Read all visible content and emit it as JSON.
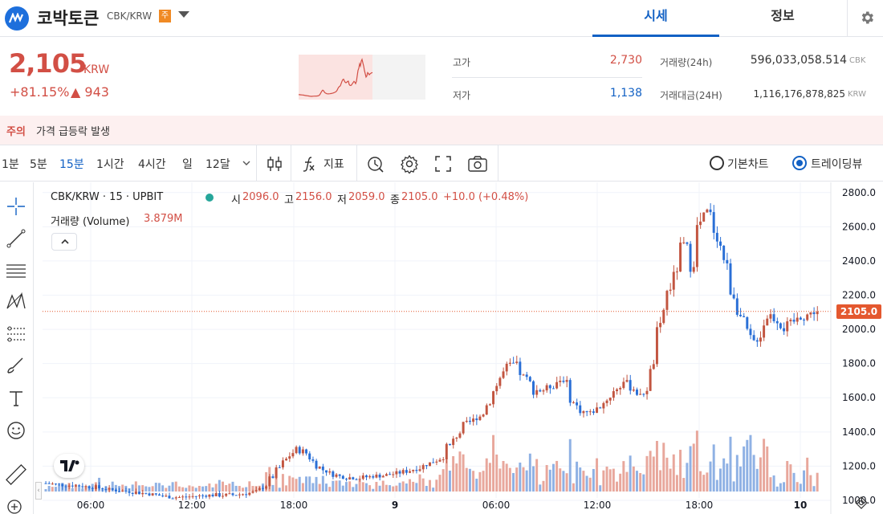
{
  "header": {
    "coin_name": "코박토큰",
    "pair": "CBK/KRW",
    "warning_badge": "주",
    "tabs": [
      {
        "label": "시세"
      },
      {
        "label": "정보"
      }
    ]
  },
  "price_panel": {
    "price": "2,105",
    "price_unit": "KRW",
    "change_rate": "+81.15%",
    "change_amount": "▲ 943",
    "high_label": "고가",
    "high_value": "2,730",
    "low_label": "저가",
    "low_value": "1,138",
    "volume_label": "거래량(24h)",
    "volume_value": "596,033,058.514",
    "volume_unit": "CBK",
    "amount_label": "거래대금(24H)",
    "amount_value": "1,116,176,878,825",
    "amount_unit": "KRW"
  },
  "alert": {
    "label": "주의",
    "message": "가격 급등락 발생"
  },
  "toolbar": {
    "intervals": [
      {
        "label": "1분"
      },
      {
        "label": "5분"
      },
      {
        "label": "15분"
      },
      {
        "label": "1시간"
      },
      {
        "label": "4시간"
      },
      {
        "label": "일"
      },
      {
        "label": "12달"
      }
    ],
    "indicator_label": "지표",
    "chart_modes": [
      {
        "label": "기본차트"
      },
      {
        "label": "트레이딩뷰"
      }
    ]
  },
  "chart": {
    "symbol_line": "CBK/KRW · 15 · UPBIT",
    "ohlc": {
      "open_label": "시",
      "open": "2096.0",
      "high_label": "고",
      "high": "2156.0",
      "low_label": "저",
      "low": "2059.0",
      "close_label": "종",
      "close": "2105.0",
      "change": "+10.0 (+0.48%)"
    },
    "volume_label": "거래량 (Volume)",
    "volume_value": "3.879M",
    "price_tag": "2105.0"
  },
  "chart_data": {
    "type": "candlestick",
    "y_ticks": [
      "2800.0",
      "2600.0",
      "2400.0",
      "2200.0",
      "2000.0",
      "1800.0",
      "1600.0",
      "1400.0",
      "1200.0",
      "1000.0"
    ],
    "ylim": [
      920,
      2860
    ],
    "x_ticks": [
      "06:00",
      "12:00",
      "18:00",
      "9",
      "06:00",
      "12:00",
      "18:00",
      "10"
    ],
    "last_price": 2105,
    "close_path": [
      1100,
      1095,
      1090,
      1088,
      1085,
      1080,
      1075,
      1068,
      1060,
      1055,
      1050,
      1045,
      1040,
      1032,
      1025,
      1020,
      1018,
      1022,
      1025,
      1028,
      1030,
      1032,
      1030,
      1035,
      1040,
      1050,
      1080,
      1130,
      1200,
      1260,
      1300,
      1280,
      1220,
      1180,
      1160,
      1140,
      1135,
      1130,
      1135,
      1140,
      1145,
      1150,
      1160,
      1170,
      1185,
      1200,
      1220,
      1250,
      1300,
      1380,
      1440,
      1470,
      1500,
      1600,
      1700,
      1780,
      1800,
      1720,
      1660,
      1640,
      1660,
      1700,
      1710,
      1560,
      1520,
      1510,
      1540,
      1600,
      1650,
      1700,
      1660,
      1600,
      1700,
      1950,
      2200,
      2300,
      2500,
      2400,
      2620,
      2700,
      2550,
      2400,
      2200,
      2050,
      1900,
      1950,
      2100,
      2060,
      2000,
      2040,
      2070,
      2090,
      2105
    ]
  }
}
